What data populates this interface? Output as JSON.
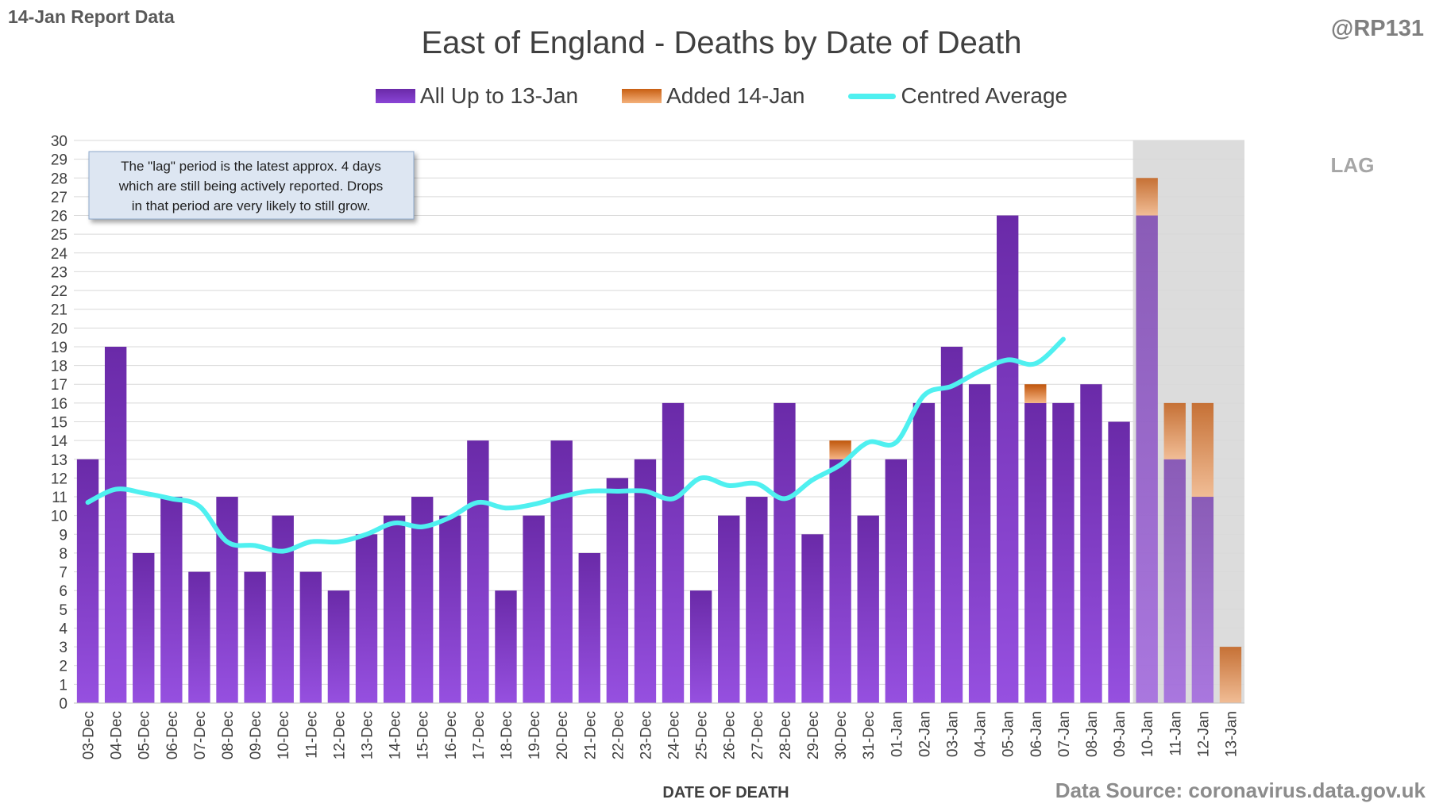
{
  "header": {
    "report_label": "14-Jan Report Data",
    "handle": "@RP131",
    "title": "East of England - Deaths by Date of Death"
  },
  "legend": {
    "series1": "All Up to 13-Jan",
    "series2": "Added 14-Jan",
    "series3": "Centred Average"
  },
  "annotation": {
    "line1": "The \"lag\" period is the latest approx. 4 days",
    "line2": "which are still being actively reported.  Drops",
    "line3": "in that period are very likely to still grow."
  },
  "lag_label": "LAG",
  "footer": {
    "source": "Data Source: coronavirus.data.gov.uk"
  },
  "colors": {
    "purple": "#7a35c4",
    "orange": "#e07a2e",
    "average": "#4ff0f0",
    "lag_shade": "#dcdcdc"
  },
  "chart_data": {
    "type": "bar",
    "xlabel": "DATE OF DEATH",
    "ylabel": "",
    "ylim": [
      0,
      30
    ],
    "y_ticks": [
      0,
      1,
      2,
      3,
      4,
      5,
      6,
      7,
      8,
      9,
      10,
      11,
      12,
      13,
      14,
      15,
      16,
      17,
      18,
      19,
      20,
      21,
      22,
      23,
      24,
      25,
      26,
      27,
      28,
      29,
      30
    ],
    "grid": true,
    "stacked": true,
    "lag_start": "10-Jan",
    "lag_end": "13-Jan",
    "categories": [
      "03-Dec",
      "04-Dec",
      "05-Dec",
      "06-Dec",
      "07-Dec",
      "08-Dec",
      "09-Dec",
      "10-Dec",
      "11-Dec",
      "12-Dec",
      "13-Dec",
      "14-Dec",
      "15-Dec",
      "16-Dec",
      "17-Dec",
      "18-Dec",
      "19-Dec",
      "20-Dec",
      "21-Dec",
      "22-Dec",
      "23-Dec",
      "24-Dec",
      "25-Dec",
      "26-Dec",
      "27-Dec",
      "28-Dec",
      "29-Dec",
      "30-Dec",
      "31-Dec",
      "01-Jan",
      "02-Jan",
      "03-Jan",
      "04-Jan",
      "05-Jan",
      "06-Jan",
      "07-Jan",
      "08-Jan",
      "09-Jan",
      "10-Jan",
      "11-Jan",
      "12-Jan",
      "13-Jan"
    ],
    "series": [
      {
        "name": "All Up to 13-Jan",
        "values": [
          13,
          19,
          8,
          11,
          7,
          11,
          7,
          10,
          7,
          6,
          9,
          10,
          11,
          10,
          14,
          6,
          10,
          14,
          8,
          12,
          13,
          16,
          6,
          10,
          11,
          16,
          9,
          13,
          10,
          13,
          16,
          19,
          17,
          26,
          16,
          16,
          17,
          15,
          26,
          13,
          11,
          0
        ]
      },
      {
        "name": "Added 14-Jan",
        "values": [
          0,
          0,
          0,
          0,
          0,
          0,
          0,
          0,
          0,
          0,
          0,
          0,
          0,
          0,
          0,
          0,
          0,
          0,
          0,
          0,
          0,
          0,
          0,
          0,
          0,
          0,
          0,
          1,
          0,
          0,
          0,
          0,
          0,
          0,
          1,
          0,
          0,
          0,
          2,
          3,
          5,
          3
        ]
      },
      {
        "name": "Centred Average",
        "type": "line",
        "values": [
          10.7,
          11.4,
          11.2,
          10.9,
          10.5,
          8.6,
          8.4,
          8.1,
          8.6,
          8.6,
          9.0,
          9.6,
          9.4,
          9.9,
          10.7,
          10.4,
          10.6,
          11.0,
          11.3,
          11.3,
          11.3,
          10.9,
          12.0,
          11.6,
          11.7,
          10.9,
          11.9,
          12.7,
          13.9,
          13.9,
          16.4,
          16.9,
          17.7,
          18.3,
          18.1,
          19.4,
          null,
          null,
          null,
          null,
          null,
          null
        ]
      }
    ]
  }
}
